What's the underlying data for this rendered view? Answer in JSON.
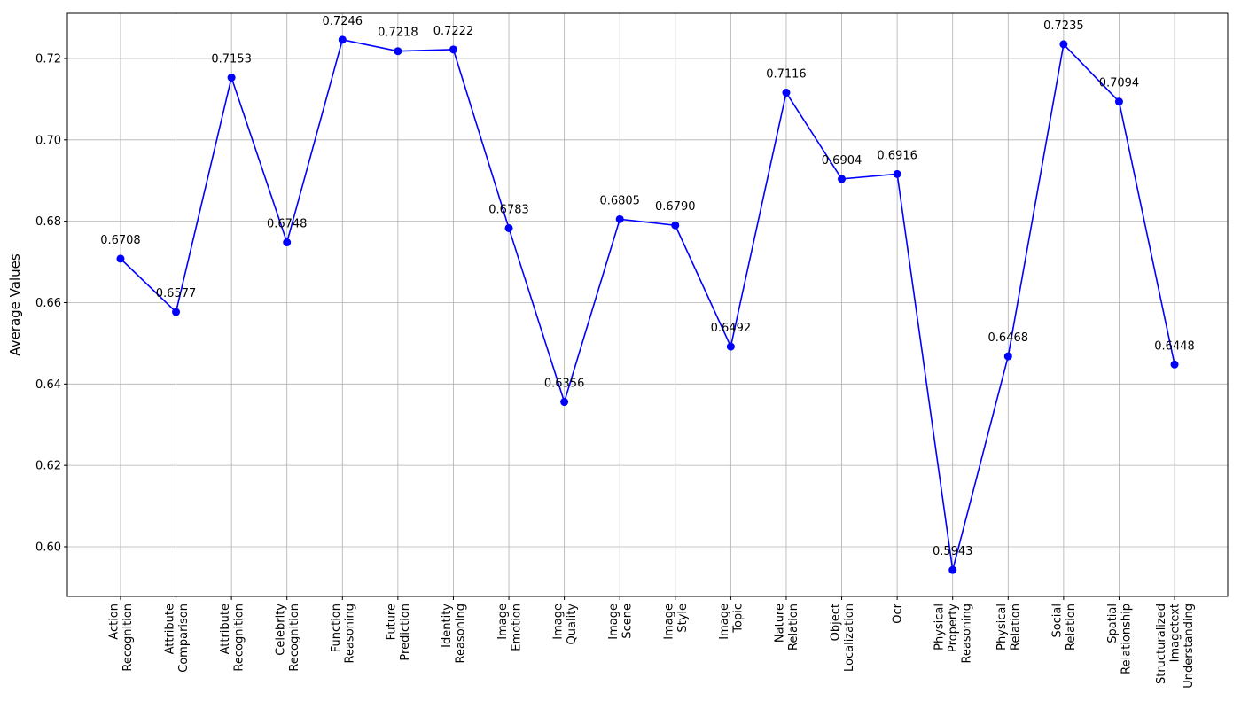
{
  "chart_data": {
    "type": "line",
    "y_label": "Average Values",
    "categories": [
      "Action\nRecognition",
      "Attribute\nComparison",
      "Attribute\nRecognition",
      "Celebrity\nRecognition",
      "Function\nReasoning",
      "Future\nPrediction",
      "Identity\nReasoning",
      "Image\nEmotion",
      "Image\nQuality",
      "Image\nScene",
      "Image\nStyle",
      "Image\nTopic",
      "Nature\nRelation",
      "Object\nLocalization",
      "Ocr",
      "Physical\nProperty\nReasoning",
      "Physical\nRelation",
      "Social\nRelation",
      "Spatial\nRelationship",
      "Structuralized\nImagetext\nUnderstanding"
    ],
    "series": [
      {
        "name": "Average Values",
        "color": "#0000ff",
        "values": [
          0.6708,
          0.6577,
          0.7153,
          0.6748,
          0.7246,
          0.7218,
          0.7222,
          0.6783,
          0.6356,
          0.6805,
          0.679,
          0.6492,
          0.7116,
          0.6904,
          0.6916,
          0.5943,
          0.6468,
          0.7235,
          0.7094,
          0.6448
        ],
        "value_labels": [
          "0.6708",
          "0.6577",
          "0.7153",
          "0.6748",
          "0.7246",
          "0.7218",
          "0.7222",
          "0.6783",
          "0.6356",
          "0.6805",
          "0.6790",
          "0.6492",
          "0.7116",
          "0.6904",
          "0.6916",
          "0.5943",
          "0.6468",
          "0.7235",
          "0.7094",
          "0.6448"
        ]
      }
    ],
    "ylim": [
      0.5878,
      0.7311
    ],
    "yticks": [
      {
        "value": 0.6,
        "label": "0.60"
      },
      {
        "value": 0.62,
        "label": "0.62"
      },
      {
        "value": 0.64,
        "label": "0.64"
      },
      {
        "value": 0.66,
        "label": "0.66"
      },
      {
        "value": 0.68,
        "label": "0.68"
      },
      {
        "value": 0.7,
        "label": "0.70"
      },
      {
        "value": 0.72,
        "label": "0.72"
      }
    ],
    "grid": true
  }
}
